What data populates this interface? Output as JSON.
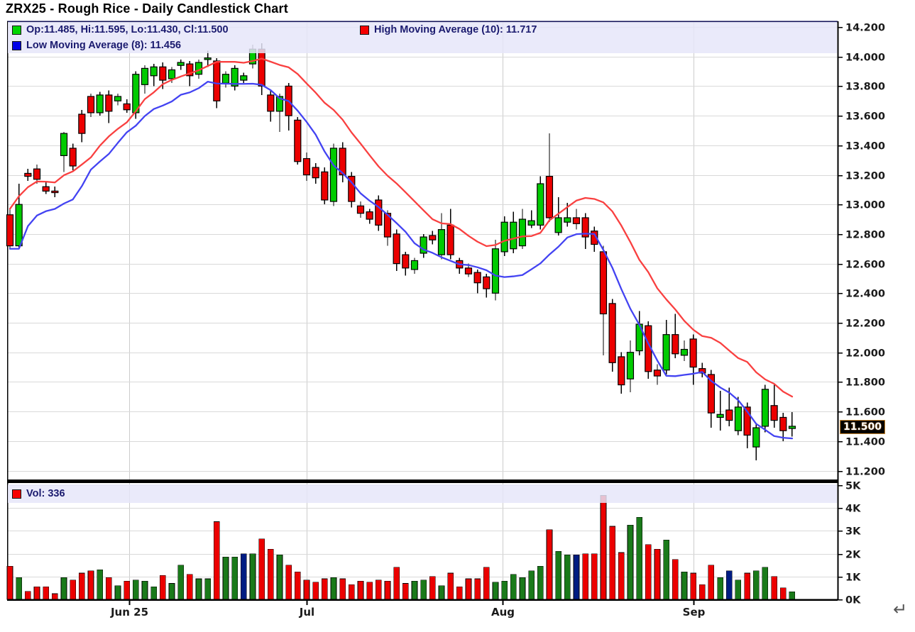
{
  "title": "ZRX25 - Rough Rice - Daily Candlestick Chart",
  "legend": {
    "ohlc_label": "Op:11.485, Hi:11.595, Lo:11.430, Cl:11.500",
    "high_ma_label": "High Moving Average (10): 11.717",
    "low_ma_label": "Low Moving Average (8): 11.456",
    "vol_label": "Vol: 336"
  },
  "last_price": "11.500",
  "return_symbol": "↵",
  "colors": {
    "candle_up": "#00cb00",
    "candle_down": "#ec0000",
    "candle_stroke": "#000000",
    "ma_high": "#f94040",
    "ma_low": "#4343f2",
    "vol_up": "#1a7a1a",
    "vol_down": "#ec0000",
    "vol_neutral": "#001c82",
    "grid": "#d9d9d9",
    "vgrid": "#cccccc",
    "axis": "#000000",
    "axis_text": "#1a1a1a",
    "legend_text": "#1b1b6f",
    "legend_bg": "rgba(230,230,249,0.84)"
  },
  "chart_data": {
    "type": "candlestick",
    "title": "ZRX25 - Rough Rice - Daily Candlestick Chart",
    "series_labels": [
      "OHLC candles",
      "High Moving Average (10)",
      "Low Moving Average (8)",
      "Volume"
    ],
    "ma_high_period": 10,
    "ma_low_period": 8,
    "last_values": {
      "open": 11.485,
      "high": 11.595,
      "low": 11.43,
      "close": 11.5,
      "volume": 336,
      "ma_high": 11.717,
      "ma_low": 11.456
    },
    "price_axis": {
      "min": 11.2,
      "max": 14.2,
      "step": 0.2,
      "labels": [
        "14.200",
        "14.000",
        "13.800",
        "13.600",
        "13.400",
        "13.200",
        "13.000",
        "12.800",
        "12.600",
        "12.400",
        "12.200",
        "12.000",
        "11.800",
        "11.600",
        "11.400",
        "11.200"
      ]
    },
    "volume_axis": {
      "min": 0,
      "max": 5000,
      "labels": [
        "5K",
        "4K",
        "3K",
        "2K",
        "1K",
        "0K"
      ]
    },
    "x_axis": {
      "ticks": [
        {
          "label": "Jun 25",
          "index": 13.3
        },
        {
          "label": "Jul",
          "index": 33
        },
        {
          "label": "Aug",
          "index": 54.8
        },
        {
          "label": "Sep",
          "index": 76
        }
      ]
    },
    "neutral_volume_indices": [
      26,
      63,
      80
    ],
    "candles": [
      [
        12.93,
        12.97,
        12.7,
        12.72,
        1450
      ],
      [
        12.72,
        13.14,
        12.7,
        13.0,
        950
      ],
      [
        13.21,
        13.24,
        13.16,
        13.19,
        350
      ],
      [
        13.24,
        13.27,
        13.14,
        13.17,
        550
      ],
      [
        13.12,
        13.15,
        13.07,
        13.09,
        550
      ],
      [
        13.09,
        13.12,
        13.05,
        13.08,
        250
      ],
      [
        13.33,
        13.49,
        13.22,
        13.48,
        950
      ],
      [
        13.38,
        13.41,
        13.23,
        13.26,
        850
      ],
      [
        13.61,
        13.64,
        13.42,
        13.48,
        1150
      ],
      [
        13.73,
        13.75,
        13.59,
        13.62,
        1250
      ],
      [
        13.62,
        13.76,
        13.6,
        13.74,
        1300
      ],
      [
        13.74,
        13.77,
        13.55,
        13.63,
        950
      ],
      [
        13.7,
        13.75,
        13.67,
        13.73,
        600
      ],
      [
        13.68,
        13.71,
        13.62,
        13.64,
        800
      ],
      [
        13.62,
        13.9,
        13.58,
        13.88,
        850
      ],
      [
        13.81,
        13.94,
        13.75,
        13.92,
        800
      ],
      [
        13.87,
        13.95,
        13.8,
        13.93,
        550
      ],
      [
        13.93,
        13.96,
        13.78,
        13.84,
        1050
      ],
      [
        13.85,
        13.93,
        13.82,
        13.91,
        700
      ],
      [
        13.94,
        13.98,
        13.91,
        13.96,
        1500
      ],
      [
        13.95,
        13.97,
        13.8,
        13.87,
        1100
      ],
      [
        13.88,
        13.98,
        13.85,
        13.96,
        900
      ],
      [
        13.98,
        14.04,
        13.93,
        13.99,
        900
      ],
      [
        13.97,
        13.99,
        13.65,
        13.7,
        3400
      ],
      [
        13.82,
        13.9,
        13.79,
        13.88,
        1850
      ],
      [
        13.8,
        13.94,
        13.77,
        13.92,
        1850
      ],
      [
        13.84,
        13.89,
        13.82,
        13.87,
        2000
      ],
      [
        13.95,
        14.08,
        13.92,
        14.05,
        2000
      ],
      [
        14.05,
        14.09,
        13.74,
        13.8,
        2650
      ],
      [
        13.74,
        13.77,
        13.56,
        13.63,
        2200
      ],
      [
        13.63,
        13.75,
        13.49,
        13.73,
        1950
      ],
      [
        13.8,
        13.82,
        13.5,
        13.6,
        1500
      ],
      [
        13.57,
        13.59,
        13.27,
        13.29,
        1200
      ],
      [
        13.31,
        13.35,
        13.16,
        13.2,
        850
      ],
      [
        13.25,
        13.28,
        13.14,
        13.18,
        750
      ],
      [
        13.22,
        13.25,
        13.0,
        13.03,
        900
      ],
      [
        13.02,
        13.41,
        12.99,
        13.38,
        950
      ],
      [
        13.38,
        13.42,
        13.15,
        13.2,
        900
      ],
      [
        13.19,
        13.22,
        12.98,
        13.02,
        650
      ],
      [
        12.99,
        13.02,
        12.91,
        12.94,
        800
      ],
      [
        12.95,
        12.97,
        12.87,
        12.9,
        750
      ],
      [
        13.03,
        13.06,
        12.82,
        12.86,
        850
      ],
      [
        12.94,
        12.96,
        12.72,
        12.78,
        800
      ],
      [
        12.8,
        12.83,
        12.55,
        12.6,
        1400
      ],
      [
        12.66,
        12.68,
        12.52,
        12.57,
        700
      ],
      [
        12.56,
        12.64,
        12.53,
        12.62,
        800
      ],
      [
        12.67,
        12.8,
        12.64,
        12.78,
        850
      ],
      [
        12.79,
        12.82,
        12.73,
        12.76,
        1000
      ],
      [
        12.66,
        12.94,
        12.63,
        12.83,
        600
      ],
      [
        12.86,
        12.97,
        12.63,
        12.66,
        1150
      ],
      [
        12.62,
        12.64,
        12.53,
        12.57,
        550
      ],
      [
        12.57,
        12.6,
        12.51,
        12.53,
        900
      ],
      [
        12.54,
        12.56,
        12.4,
        12.47,
        900
      ],
      [
        12.51,
        12.53,
        12.37,
        12.43,
        1400
      ],
      [
        12.4,
        12.76,
        12.35,
        12.7,
        750
      ],
      [
        12.68,
        12.92,
        12.65,
        12.88,
        800
      ],
      [
        12.7,
        12.95,
        12.67,
        12.88,
        1100
      ],
      [
        12.72,
        12.97,
        12.7,
        12.9,
        950
      ],
      [
        12.86,
        12.96,
        12.84,
        12.89,
        1250
      ],
      [
        12.86,
        13.19,
        12.83,
        13.14,
        1450
      ],
      [
        13.19,
        13.48,
        12.88,
        12.91,
        3050
      ],
      [
        12.81,
        13.05,
        12.79,
        12.91,
        2100
      ],
      [
        12.88,
        13.01,
        12.85,
        12.91,
        1950
      ],
      [
        12.91,
        12.97,
        12.83,
        12.87,
        1950
      ],
      [
        12.91,
        12.94,
        12.7,
        12.78,
        2000
      ],
      [
        12.82,
        12.85,
        12.68,
        12.73,
        2000
      ],
      [
        12.68,
        12.72,
        11.98,
        12.26,
        4550
      ],
      [
        12.33,
        12.36,
        11.87,
        11.93,
        3200
      ],
      [
        11.97,
        12.0,
        11.72,
        11.78,
        2050
      ],
      [
        11.82,
        12.08,
        11.73,
        12.0,
        3250
      ],
      [
        12.01,
        12.28,
        11.98,
        12.19,
        3600
      ],
      [
        12.18,
        12.21,
        11.82,
        11.87,
        2400
      ],
      [
        11.88,
        11.92,
        11.78,
        11.84,
        2200
      ],
      [
        11.88,
        12.22,
        11.85,
        12.12,
        2600
      ],
      [
        12.12,
        12.26,
        11.96,
        11.99,
        1750
      ],
      [
        11.98,
        12.08,
        11.94,
        12.02,
        1200
      ],
      [
        12.09,
        12.12,
        11.78,
        11.9,
        1150
      ],
      [
        11.89,
        11.93,
        11.83,
        11.86,
        650
      ],
      [
        11.85,
        11.88,
        11.49,
        11.59,
        1500
      ],
      [
        11.56,
        11.74,
        11.47,
        11.58,
        950
      ],
      [
        11.61,
        11.76,
        11.5,
        11.54,
        1250
      ],
      [
        11.47,
        11.7,
        11.44,
        11.63,
        850
      ],
      [
        11.63,
        11.66,
        11.35,
        11.44,
        1150
      ],
      [
        11.36,
        11.52,
        11.27,
        11.49,
        1250
      ],
      [
        11.5,
        11.78,
        11.46,
        11.75,
        1400
      ],
      [
        11.64,
        11.78,
        11.49,
        11.54,
        1000
      ],
      [
        11.56,
        11.59,
        11.4,
        11.47,
        500
      ],
      [
        11.485,
        11.595,
        11.43,
        11.5,
        336
      ]
    ]
  }
}
